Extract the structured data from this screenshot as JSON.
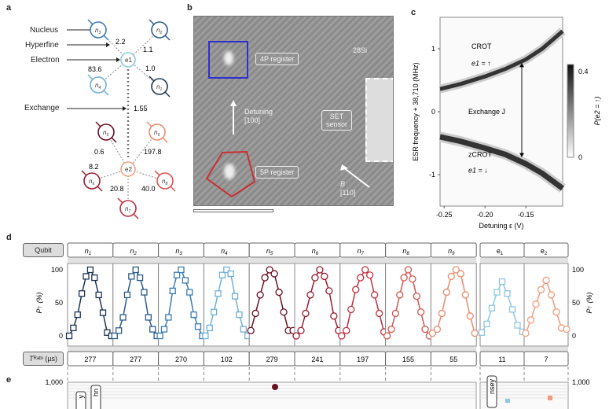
{
  "panel_a": {
    "label": "a",
    "legend": [
      "Nucleus",
      "Hyperfine",
      "Electron",
      "Exchange"
    ],
    "electrons": [
      "e1",
      "e2"
    ],
    "hyperfine": {
      "n3": "2.2",
      "n2": "1.1",
      "n4": "83.6",
      "n1": "1.0",
      "n5": "0.6",
      "n9": "197.8",
      "n6": "8.2",
      "n8": "40.0",
      "n7": "20.8"
    },
    "exchange": "1.55"
  },
  "panel_b": {
    "label": "b",
    "isotope": "28Si",
    "register_4p": "4P register",
    "register_5p": "5P register",
    "detuning": "Detuning",
    "detuning_dir": "[100]",
    "set_sensor_line1": "SET",
    "set_sensor_line2": "sensor",
    "field": "B",
    "field_dir": "[110]"
  },
  "chart_data": [
    {
      "type": "heatmap",
      "label": "c",
      "xlabel": "Detuning ε (V)",
      "ylabel": "ESR frequency + 38,710 (MHz)",
      "xlim": [
        -0.255,
        -0.105
      ],
      "ylim": [
        -1.5,
        1.5
      ],
      "xticks": [
        "-0.25",
        "-0.20",
        "-0.15"
      ],
      "xtick_values": [
        -0.25,
        -0.2,
        -0.15
      ],
      "yticks": [
        "1",
        "0",
        "-1"
      ],
      "ytick_values": [
        1,
        0,
        -1
      ],
      "colorbar": {
        "label": "P(e2 = ↑)",
        "ticks": [
          "0.4",
          "0"
        ],
        "range": [
          0,
          0.45
        ]
      },
      "upper_branch": {
        "label": "CROT",
        "state": "e1 = ↑",
        "x": [
          -0.255,
          -0.23,
          -0.2,
          -0.175,
          -0.15,
          -0.13,
          -0.105
        ],
        "y": [
          0.36,
          0.44,
          0.56,
          0.68,
          0.83,
          1.0,
          1.28
        ]
      },
      "lower_branch": {
        "label": "zCROT",
        "state": "e1 = ↓",
        "x": [
          -0.255,
          -0.23,
          -0.2,
          -0.175,
          -0.15,
          -0.13,
          -0.105
        ],
        "y": [
          -0.4,
          -0.47,
          -0.58,
          -0.68,
          -0.83,
          -0.98,
          -1.22
        ]
      },
      "annotation": "Exchange J"
    },
    {
      "type": "line",
      "label": "d",
      "ylabel_left": "P↑ (%)",
      "ylabel_right": "P↑ (%)",
      "ylim": [
        0,
        100
      ],
      "yticks": [
        "0",
        "50",
        "100"
      ],
      "row_header": "Qubit",
      "rabi_header": "T_Rabi (µs)",
      "qubits": [
        {
          "name": "n1",
          "sub": "1",
          "color": "#1d3557",
          "marker": "square",
          "t_rabi": "277",
          "values": [
            0,
            12,
            32,
            64,
            90,
            100,
            88,
            62,
            35,
            5,
            0
          ]
        },
        {
          "name": "n2",
          "sub": "2",
          "color": "#2b5c8c",
          "marker": "square",
          "t_rabi": "277",
          "values": [
            0,
            8,
            28,
            62,
            90,
            100,
            88,
            66,
            28,
            10,
            0
          ]
        },
        {
          "name": "n3",
          "sub": "3",
          "color": "#3b7cb3",
          "marker": "square",
          "t_rabi": "270",
          "values": [
            0,
            10,
            28,
            68,
            92,
            100,
            84,
            66,
            32,
            14,
            0
          ]
        },
        {
          "name": "n4",
          "sub": "4",
          "color": "#6eb0d8",
          "marker": "square",
          "t_rabi": "102",
          "values": [
            0,
            12,
            36,
            64,
            92,
            100,
            94,
            60,
            32,
            10,
            0
          ]
        },
        {
          "name": "n5",
          "sub": "5",
          "color": "#6a0f22",
          "marker": "hexagon",
          "t_rabi": "279",
          "values": [
            8,
            34,
            62,
            88,
            100,
            94,
            66,
            36,
            8,
            8
          ]
        },
        {
          "name": "n6",
          "sub": "6",
          "color": "#9b1c30",
          "marker": "hexagon",
          "t_rabi": "241",
          "values": [
            0,
            8,
            34,
            62,
            88,
            100,
            90,
            68,
            30,
            8
          ]
        },
        {
          "name": "n7",
          "sub": "7",
          "color": "#c22f3d",
          "marker": "hexagon",
          "t_rabi": "197",
          "values": [
            0,
            8,
            40,
            70,
            88,
            100,
            92,
            62,
            34,
            6
          ]
        },
        {
          "name": "n8",
          "sub": "8",
          "color": "#d9534c",
          "marker": "hexagon",
          "t_rabi": "155",
          "values": [
            0,
            10,
            34,
            62,
            88,
            100,
            86,
            60,
            36,
            10,
            0
          ]
        },
        {
          "name": "n9",
          "sub": "9",
          "color": "#ec8a6d",
          "marker": "hexagon",
          "t_rabi": "55",
          "values": [
            4,
            10,
            34,
            66,
            90,
            100,
            94,
            62,
            30,
            4
          ]
        },
        {
          "name": "e1",
          "sub": "1",
          "color": "#8ec6e2",
          "marker": "square",
          "t_rabi": "11",
          "values": [
            5,
            18,
            42,
            66,
            82,
            64,
            40,
            16,
            6
          ]
        },
        {
          "name": "e2",
          "sub": "2",
          "color": "#f29b7c",
          "marker": "hexagon",
          "t_rabi": "7",
          "values": [
            4,
            24,
            48,
            70,
            84,
            62,
            36,
            12,
            10
          ]
        }
      ]
    },
    {
      "type": "scatter",
      "label": "e",
      "yticks": [
        "1,000",
        "1,000"
      ],
      "tags": [
        "y",
        "hn",
        "nsey"
      ]
    }
  ]
}
